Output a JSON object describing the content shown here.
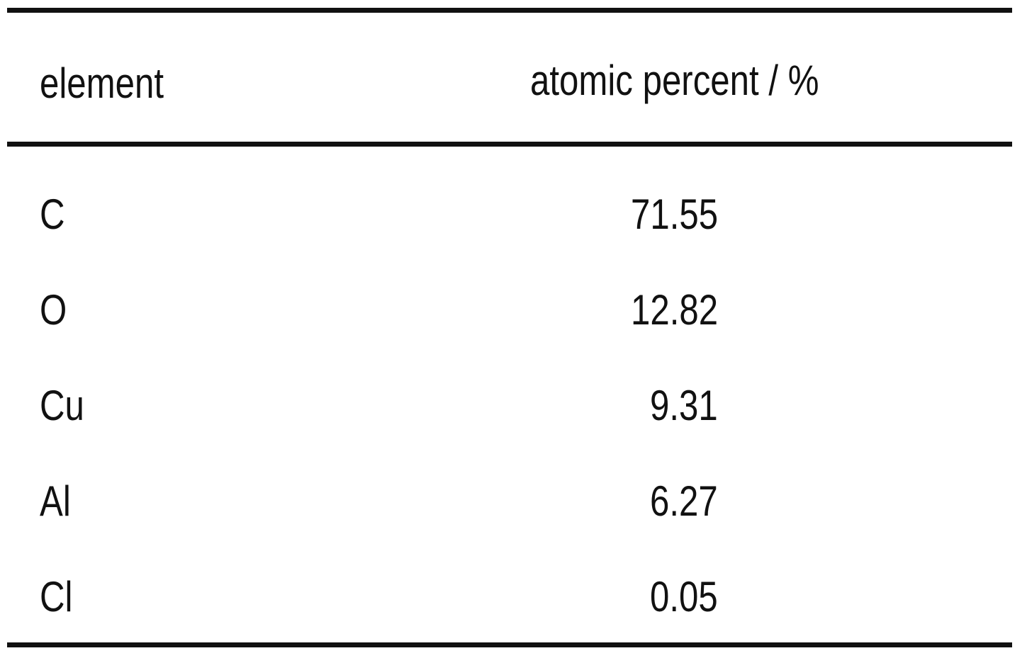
{
  "table": {
    "header": [
      "element",
      "atomic percent / %"
    ],
    "rows": [
      [
        "C",
        "71.55"
      ],
      [
        "O",
        "12.82"
      ],
      [
        "Cu",
        "9.31"
      ],
      [
        "Al",
        "6.27"
      ],
      [
        "Cl",
        "0.05"
      ]
    ]
  }
}
